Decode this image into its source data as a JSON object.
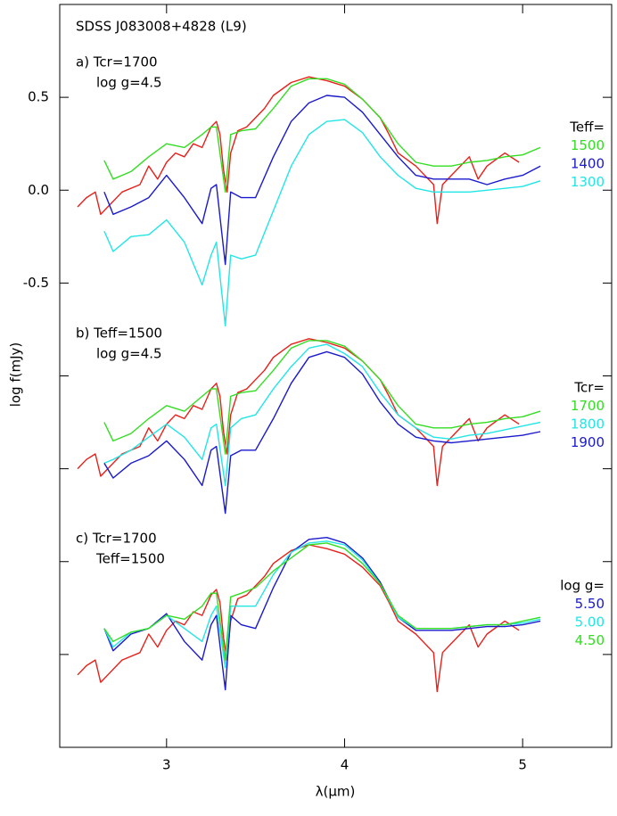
{
  "chart_data": {
    "type": "line",
    "title": "SDSS J083008+4828 (L9)",
    "xlabel": "λ(μm)",
    "ylabel": "log f(mJy)",
    "xlim": [
      2.4,
      5.5
    ],
    "ylim": [
      -3.0,
      1.0
    ],
    "xticks": [
      3,
      4,
      5
    ],
    "yticks": [
      0.5,
      {
        "value": 0,
        "label": "0.0"
      },
      -0.5
    ],
    "yminorticks": [
      -1.0,
      -1.5,
      -2.0,
      -2.5
    ],
    "panels": [
      {
        "label": "a) Tcr=1700",
        "label2": "log g=4.5",
        "legend_title": "Teff=",
        "series": [
          {
            "color": "#e8201a",
            "x": [
              2.5,
              2.55,
              2.6,
              2.63,
              2.68,
              2.75,
              2.85,
              2.9,
              2.95,
              3.0,
              3.05,
              3.1,
              3.15,
              3.2,
              3.25,
              3.28,
              3.3,
              3.32,
              3.34,
              3.36,
              3.4,
              3.45,
              3.5,
              3.55,
              3.6,
              3.7,
              3.8,
              3.9,
              4.0,
              4.1,
              4.2,
              4.25,
              4.3,
              4.4,
              4.5,
              4.52,
              4.55,
              4.6,
              4.7,
              4.75,
              4.8,
              4.9,
              4.98
            ],
            "values": [
              -0.09,
              -0.04,
              -0.01,
              -0.13,
              -0.08,
              -0.01,
              0.03,
              0.13,
              0.06,
              0.15,
              0.2,
              0.18,
              0.25,
              0.23,
              0.34,
              0.37,
              0.3,
              0.11,
              -0.01,
              0.2,
              0.32,
              0.34,
              0.39,
              0.44,
              0.51,
              0.58,
              0.61,
              0.59,
              0.56,
              0.49,
              0.39,
              0.3,
              0.2,
              0.13,
              0.03,
              -0.18,
              0.03,
              0.08,
              0.18,
              0.06,
              0.13,
              0.2,
              0.15
            ]
          },
          {
            "name": "1500",
            "color": "#33dd22",
            "x": [
              2.65,
              2.7,
              2.8,
              2.9,
              3.0,
              3.1,
              3.2,
              3.25,
              3.28,
              3.33,
              3.36,
              3.42,
              3.5,
              3.6,
              3.7,
              3.8,
              3.9,
              4.0,
              4.1,
              4.2,
              4.3,
              4.4,
              4.5,
              4.6,
              4.7,
              4.8,
              4.9,
              5.0,
              5.1
            ],
            "values": [
              0.16,
              0.06,
              0.1,
              0.18,
              0.25,
              0.23,
              0.3,
              0.34,
              0.34,
              -0.01,
              0.3,
              0.32,
              0.33,
              0.44,
              0.56,
              0.6,
              0.6,
              0.57,
              0.49,
              0.39,
              0.25,
              0.15,
              0.13,
              0.13,
              0.15,
              0.16,
              0.18,
              0.19,
              0.23
            ]
          },
          {
            "name": "1400",
            "color": "#1a1acc",
            "x": [
              2.65,
              2.7,
              2.8,
              2.9,
              3.0,
              3.1,
              3.2,
              3.25,
              3.28,
              3.33,
              3.36,
              3.42,
              3.5,
              3.6,
              3.7,
              3.8,
              3.9,
              4.0,
              4.1,
              4.2,
              4.3,
              4.4,
              4.5,
              4.6,
              4.7,
              4.8,
              4.9,
              5.0,
              5.1
            ],
            "values": [
              -0.01,
              -0.13,
              -0.09,
              -0.04,
              0.08,
              -0.04,
              -0.18,
              0.01,
              0.03,
              -0.4,
              -0.01,
              -0.04,
              -0.04,
              0.18,
              0.37,
              0.47,
              0.51,
              0.5,
              0.42,
              0.3,
              0.18,
              0.08,
              0.06,
              0.06,
              0.06,
              0.03,
              0.06,
              0.08,
              0.13
            ]
          },
          {
            "name": "1300",
            "color": "#22e5e5",
            "x": [
              2.65,
              2.7,
              2.8,
              2.9,
              3.0,
              3.1,
              3.2,
              3.25,
              3.28,
              3.33,
              3.36,
              3.42,
              3.5,
              3.6,
              3.7,
              3.8,
              3.9,
              4.0,
              4.1,
              4.2,
              4.3,
              4.4,
              4.5,
              4.6,
              4.7,
              4.8,
              4.9,
              5.0,
              5.1
            ],
            "values": [
              -0.22,
              -0.33,
              -0.25,
              -0.24,
              -0.16,
              -0.28,
              -0.51,
              -0.35,
              -0.28,
              -0.73,
              -0.35,
              -0.37,
              -0.35,
              -0.11,
              0.13,
              0.3,
              0.37,
              0.38,
              0.31,
              0.18,
              0.08,
              0.01,
              -0.01,
              -0.01,
              -0.01,
              0.0,
              0.01,
              0.02,
              0.05
            ]
          }
        ]
      },
      {
        "label": "b) Teff=1500",
        "label2": "log g=4.5",
        "legend_title": "Tcr=",
        "series": [
          {
            "color": "#e8201a",
            "x": [
              2.5,
              2.55,
              2.6,
              2.63,
              2.68,
              2.75,
              2.85,
              2.9,
              2.95,
              3.0,
              3.05,
              3.1,
              3.15,
              3.2,
              3.25,
              3.28,
              3.3,
              3.32,
              3.34,
              3.36,
              3.4,
              3.45,
              3.5,
              3.55,
              3.6,
              3.7,
              3.8,
              3.9,
              4.0,
              4.1,
              4.2,
              4.25,
              4.3,
              4.4,
              4.5,
              4.52,
              4.55,
              4.6,
              4.7,
              4.75,
              4.8,
              4.9,
              4.98
            ],
            "values": [
              -1.5,
              -1.45,
              -1.42,
              -1.54,
              -1.49,
              -1.42,
              -1.38,
              -1.28,
              -1.35,
              -1.26,
              -1.21,
              -1.23,
              -1.16,
              -1.18,
              -1.07,
              -1.04,
              -1.11,
              -1.3,
              -1.42,
              -1.21,
              -1.09,
              -1.07,
              -1.02,
              -0.97,
              -0.9,
              -0.83,
              -0.8,
              -0.82,
              -0.85,
              -0.92,
              -1.02,
              -1.11,
              -1.21,
              -1.28,
              -1.38,
              -1.59,
              -1.38,
              -1.33,
              -1.23,
              -1.35,
              -1.28,
              -1.21,
              -1.26
            ]
          },
          {
            "name": "1700",
            "color": "#33dd22",
            "x": [
              2.65,
              2.7,
              2.8,
              2.9,
              3.0,
              3.1,
              3.2,
              3.25,
              3.28,
              3.33,
              3.36,
              3.42,
              3.5,
              3.6,
              3.7,
              3.8,
              3.9,
              4.0,
              4.1,
              4.2,
              4.3,
              4.4,
              4.5,
              4.6,
              4.7,
              4.8,
              4.9,
              5.0,
              5.1
            ],
            "values": [
              -1.25,
              -1.35,
              -1.31,
              -1.23,
              -1.16,
              -1.19,
              -1.11,
              -1.07,
              -1.07,
              -1.42,
              -1.11,
              -1.09,
              -1.08,
              -0.97,
              -0.85,
              -0.81,
              -0.81,
              -0.84,
              -0.92,
              -1.02,
              -1.16,
              -1.26,
              -1.28,
              -1.28,
              -1.26,
              -1.25,
              -1.23,
              -1.22,
              -1.19
            ]
          },
          {
            "name": "1800",
            "color": "#22e5e5",
            "x": [
              2.65,
              2.7,
              2.8,
              2.9,
              3.0,
              3.1,
              3.2,
              3.25,
              3.28,
              3.33,
              3.36,
              3.42,
              3.5,
              3.6,
              3.7,
              3.8,
              3.9,
              4.0,
              4.1,
              4.2,
              4.3,
              4.4,
              4.5,
              4.6,
              4.7,
              4.8,
              4.9,
              5.0,
              5.1
            ],
            "values": [
              -1.47,
              -1.45,
              -1.4,
              -1.33,
              -1.26,
              -1.33,
              -1.45,
              -1.28,
              -1.26,
              -1.59,
              -1.28,
              -1.23,
              -1.21,
              -1.07,
              -0.95,
              -0.85,
              -0.83,
              -0.88,
              -0.95,
              -1.09,
              -1.21,
              -1.28,
              -1.33,
              -1.34,
              -1.32,
              -1.31,
              -1.29,
              -1.27,
              -1.25
            ]
          },
          {
            "name": "1900",
            "color": "#1a1acc",
            "x": [
              2.65,
              2.7,
              2.8,
              2.9,
              3.0,
              3.1,
              3.2,
              3.25,
              3.28,
              3.33,
              3.36,
              3.42,
              3.5,
              3.6,
              3.7,
              3.8,
              3.9,
              4.0,
              4.1,
              4.2,
              4.3,
              4.4,
              4.5,
              4.6,
              4.7,
              4.8,
              4.9,
              5.0,
              5.1
            ],
            "values": [
              -1.47,
              -1.55,
              -1.47,
              -1.43,
              -1.35,
              -1.45,
              -1.59,
              -1.4,
              -1.38,
              -1.74,
              -1.43,
              -1.4,
              -1.4,
              -1.23,
              -1.04,
              -0.9,
              -0.87,
              -0.9,
              -0.99,
              -1.14,
              -1.26,
              -1.33,
              -1.35,
              -1.36,
              -1.35,
              -1.34,
              -1.33,
              -1.32,
              -1.3
            ]
          }
        ]
      },
      {
        "label": "c) Tcr=1700",
        "label2": "Teff=1500",
        "legend_title": "log g=",
        "series": [
          {
            "color": "#e8201a",
            "x": [
              2.5,
              2.55,
              2.6,
              2.63,
              2.68,
              2.75,
              2.85,
              2.9,
              2.95,
              3.0,
              3.05,
              3.1,
              3.15,
              3.2,
              3.25,
              3.28,
              3.3,
              3.32,
              3.34,
              3.36,
              3.4,
              3.45,
              3.5,
              3.55,
              3.6,
              3.7,
              3.8,
              3.9,
              4.0,
              4.1,
              4.2,
              4.25,
              4.3,
              4.4,
              4.5,
              4.52,
              4.55,
              4.6,
              4.7,
              4.75,
              4.8,
              4.9,
              4.98
            ],
            "values": [
              -2.61,
              -2.56,
              -2.53,
              -2.65,
              -2.6,
              -2.53,
              -2.49,
              -2.39,
              -2.46,
              -2.37,
              -2.32,
              -2.34,
              -2.27,
              -2.29,
              -2.18,
              -2.15,
              -2.22,
              -2.41,
              -2.53,
              -2.32,
              -2.2,
              -2.18,
              -2.13,
              -2.08,
              -2.01,
              -1.94,
              -1.91,
              -1.93,
              -1.96,
              -2.03,
              -2.13,
              -2.22,
              -2.32,
              -2.39,
              -2.49,
              -2.7,
              -2.49,
              -2.44,
              -2.34,
              -2.46,
              -2.39,
              -2.32,
              -2.37
            ]
          },
          {
            "name": "5.50",
            "color": "#1a1acc",
            "x": [
              2.65,
              2.7,
              2.8,
              2.9,
              3.0,
              3.1,
              3.2,
              3.25,
              3.28,
              3.33,
              3.36,
              3.42,
              3.5,
              3.6,
              3.7,
              3.8,
              3.9,
              4.0,
              4.1,
              4.2,
              4.3,
              4.4,
              4.5,
              4.6,
              4.7,
              4.8,
              4.9,
              5.0,
              5.1
            ],
            "values": [
              -2.36,
              -2.48,
              -2.39,
              -2.36,
              -2.28,
              -2.43,
              -2.53,
              -2.34,
              -2.29,
              -2.69,
              -2.29,
              -2.34,
              -2.36,
              -2.14,
              -1.95,
              -1.88,
              -1.87,
              -1.9,
              -1.98,
              -2.11,
              -2.3,
              -2.37,
              -2.37,
              -2.37,
              -2.36,
              -2.35,
              -2.35,
              -2.34,
              -2.32
            ]
          },
          {
            "name": "5.00",
            "color": "#22e5e5",
            "x": [
              2.65,
              2.7,
              2.8,
              2.9,
              3.0,
              3.1,
              3.2,
              3.25,
              3.28,
              3.33,
              3.36,
              3.42,
              3.5,
              3.6,
              3.7,
              3.8,
              3.9,
              4.0,
              4.1,
              4.2,
              4.3,
              4.4,
              4.5,
              4.6,
              4.7,
              4.8,
              4.9,
              5.0,
              5.1
            ],
            "values": [
              -2.36,
              -2.46,
              -2.38,
              -2.36,
              -2.29,
              -2.36,
              -2.43,
              -2.29,
              -2.24,
              -2.57,
              -2.24,
              -2.24,
              -2.24,
              -2.07,
              -1.95,
              -1.9,
              -1.89,
              -1.91,
              -1.99,
              -2.12,
              -2.3,
              -2.36,
              -2.36,
              -2.36,
              -2.35,
              -2.34,
              -2.34,
              -2.33,
              -2.31
            ]
          },
          {
            "name": "4.50",
            "color": "#33dd22",
            "x": [
              2.65,
              2.7,
              2.8,
              2.9,
              3.0,
              3.1,
              3.2,
              3.25,
              3.28,
              3.33,
              3.36,
              3.42,
              3.5,
              3.6,
              3.7,
              3.8,
              3.9,
              4.0,
              4.1,
              4.2,
              4.3,
              4.4,
              4.5,
              4.6,
              4.7,
              4.8,
              4.9,
              5.0,
              5.1
            ],
            "values": [
              -2.36,
              -2.43,
              -2.38,
              -2.36,
              -2.29,
              -2.31,
              -2.24,
              -2.17,
              -2.17,
              -2.53,
              -2.19,
              -2.17,
              -2.14,
              -2.05,
              -1.98,
              -1.91,
              -1.9,
              -1.93,
              -2.01,
              -2.12,
              -2.29,
              -2.36,
              -2.36,
              -2.36,
              -2.35,
              -2.34,
              -2.34,
              -2.32,
              -2.3
            ]
          }
        ]
      }
    ]
  }
}
